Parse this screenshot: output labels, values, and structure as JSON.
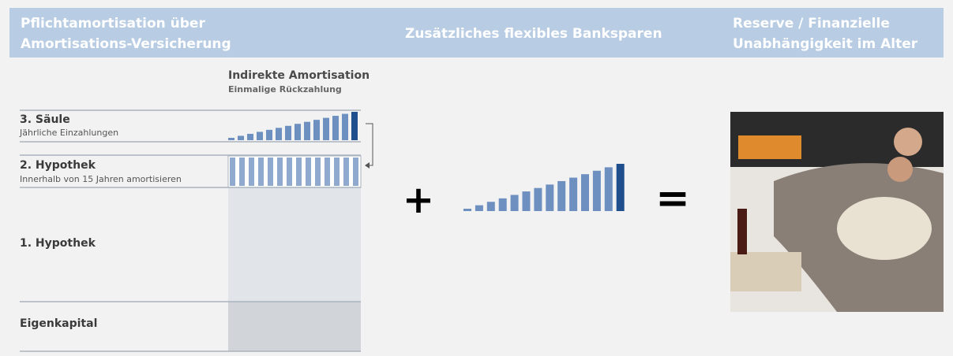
{
  "header": {
    "left": [
      "Pflichtamortisation über",
      "Amortisations-Versicherung"
    ],
    "middle": "Zusätzliches flexibles Banksparen",
    "right": [
      "Reserve / Finanzielle",
      "Unabhängigkeit im Alter"
    ]
  },
  "indirect": {
    "title": "Indirekte Amortisation",
    "subtitle": "Einmalige Rückzahlung"
  },
  "rows": [
    {
      "label": "3. Säule",
      "sublabel": "Jährliche Einzahlungen"
    },
    {
      "label": "2. Hypothek",
      "sublabel": "Innerhalb von 15 Jahren amortisieren"
    },
    {
      "label": "1. Hypothek"
    },
    {
      "label": "Eigenkapital"
    }
  ],
  "operators": {
    "plus": "+",
    "equals": "="
  }
}
